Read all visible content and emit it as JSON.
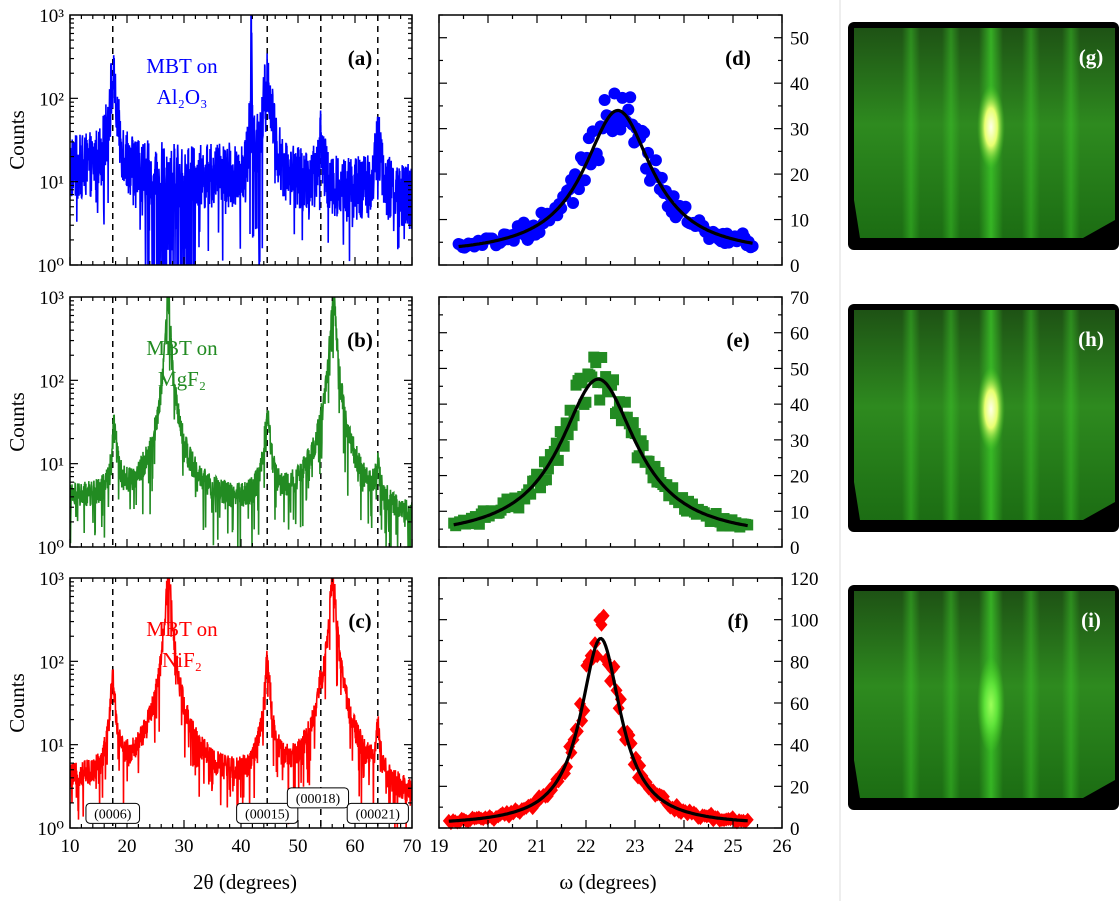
{
  "colors": {
    "blue": "#0000ff",
    "green": "#228b22",
    "red": "#ff0000",
    "fit": "#000000",
    "rheed_background": "#000000",
    "rheed_stripe": "#3fd02a"
  },
  "xrd": {
    "xlabel": "2θ (degrees)",
    "ylabel": "Counts",
    "xlim": [
      10,
      70
    ],
    "ylim": [
      1,
      1000
    ],
    "yscale": "log",
    "xticks": [
      "10",
      "20",
      "30",
      "40",
      "50",
      "60",
      "70"
    ],
    "yticks": [
      "10⁰",
      "10¹",
      "10²",
      "10³"
    ],
    "reference_lines": [
      17.5,
      44.6,
      54.0,
      64.0
    ]
  },
  "rocking": {
    "xlabel": "ω (degrees)",
    "xlim": [
      19,
      26
    ],
    "xticks": [
      "19",
      "20",
      "21",
      "22",
      "23",
      "24",
      "25",
      "26"
    ]
  },
  "peak_labels": [
    {
      "text": "(0006)",
      "x": 17.5,
      "y": 1.5
    },
    {
      "text": "(00015)",
      "x": 44.6,
      "y": 1.5
    },
    {
      "text": "(00018)",
      "x": 53.5,
      "y": 2.3
    },
    {
      "text": "(00021)",
      "x": 64.0,
      "y": 1.5
    }
  ],
  "rheed": [
    {
      "label": "(g)"
    },
    {
      "label": "(h)"
    },
    {
      "label": "(i)"
    }
  ],
  "chart_data": [
    {
      "type": "line",
      "panel": "(a)",
      "sample": "MBT on Al₂O₃",
      "series_color": "blue",
      "baseline": 14,
      "noise": 0.3,
      "peaks": [
        {
          "x": 17.5,
          "height": 150,
          "width": 0.5
        },
        {
          "x": 41.8,
          "height": 1000,
          "width": 0.06
        },
        {
          "x": 44.6,
          "height": 150,
          "width": 0.6
        },
        {
          "x": 54.0,
          "height": 30,
          "width": 0.35
        },
        {
          "x": 64.0,
          "height": 30,
          "width": 0.4
        }
      ]
    },
    {
      "type": "line",
      "panel": "(b)",
      "sample": "MBT on MgF₂",
      "series_color": "green",
      "baseline": 3.5,
      "noise": 0.12,
      "peaks": [
        {
          "x": 17.8,
          "height": 25,
          "width": 0.4
        },
        {
          "x": 27.2,
          "height": 1000,
          "width": 0.35
        },
        {
          "x": 44.6,
          "height": 32,
          "width": 0.5
        },
        {
          "x": 56.2,
          "height": 1000,
          "width": 0.4
        },
        {
          "x": 64.0,
          "height": 5,
          "width": 0.4
        }
      ]
    },
    {
      "type": "line",
      "panel": "(c)",
      "sample": "MBT on NiF₂",
      "series_color": "red",
      "baseline": 3.2,
      "noise": 0.12,
      "peaks": [
        {
          "x": 17.5,
          "height": 55,
          "width": 0.4
        },
        {
          "x": 27.3,
          "height": 1000,
          "width": 0.45
        },
        {
          "x": 44.6,
          "height": 95,
          "width": 0.45
        },
        {
          "x": 53.9,
          "height": 20,
          "width": 0.3
        },
        {
          "x": 56.1,
          "height": 1000,
          "width": 0.45
        },
        {
          "x": 64.0,
          "height": 11,
          "width": 0.35
        }
      ]
    },
    {
      "type": "scatter",
      "panel": "(d)",
      "marker": "circle",
      "series_color": "blue",
      "ylim": [
        0,
        55
      ],
      "yticks": [
        0,
        10,
        20,
        30,
        40,
        50
      ],
      "fit": {
        "center": 22.65,
        "amplitude": 32,
        "fwhm": 1.7,
        "offset": 2
      },
      "x_range": [
        19.4,
        25.4
      ],
      "n_points": 150,
      "noise": 0.18
    },
    {
      "type": "scatter",
      "panel": "(e)",
      "marker": "square",
      "series_color": "green",
      "ylim": [
        0,
        70
      ],
      "yticks": [
        0,
        10,
        20,
        30,
        40,
        50,
        60,
        70
      ],
      "fit": {
        "center": 22.25,
        "amplitude": 45,
        "fwhm": 1.9,
        "offset": 2
      },
      "x_range": [
        19.3,
        25.3
      ],
      "n_points": 150,
      "noise": 0.16
    },
    {
      "type": "scatter",
      "panel": "(f)",
      "marker": "diamond",
      "series_color": "red",
      "ylim": [
        0,
        120
      ],
      "yticks": [
        0,
        20,
        40,
        60,
        80,
        100,
        120
      ],
      "fit": {
        "center": 22.3,
        "amplitude": 90,
        "fwhm": 1.0,
        "offset": 1
      },
      "x_range": [
        19.2,
        25.3
      ],
      "n_points": 140,
      "noise": 0.14
    }
  ]
}
